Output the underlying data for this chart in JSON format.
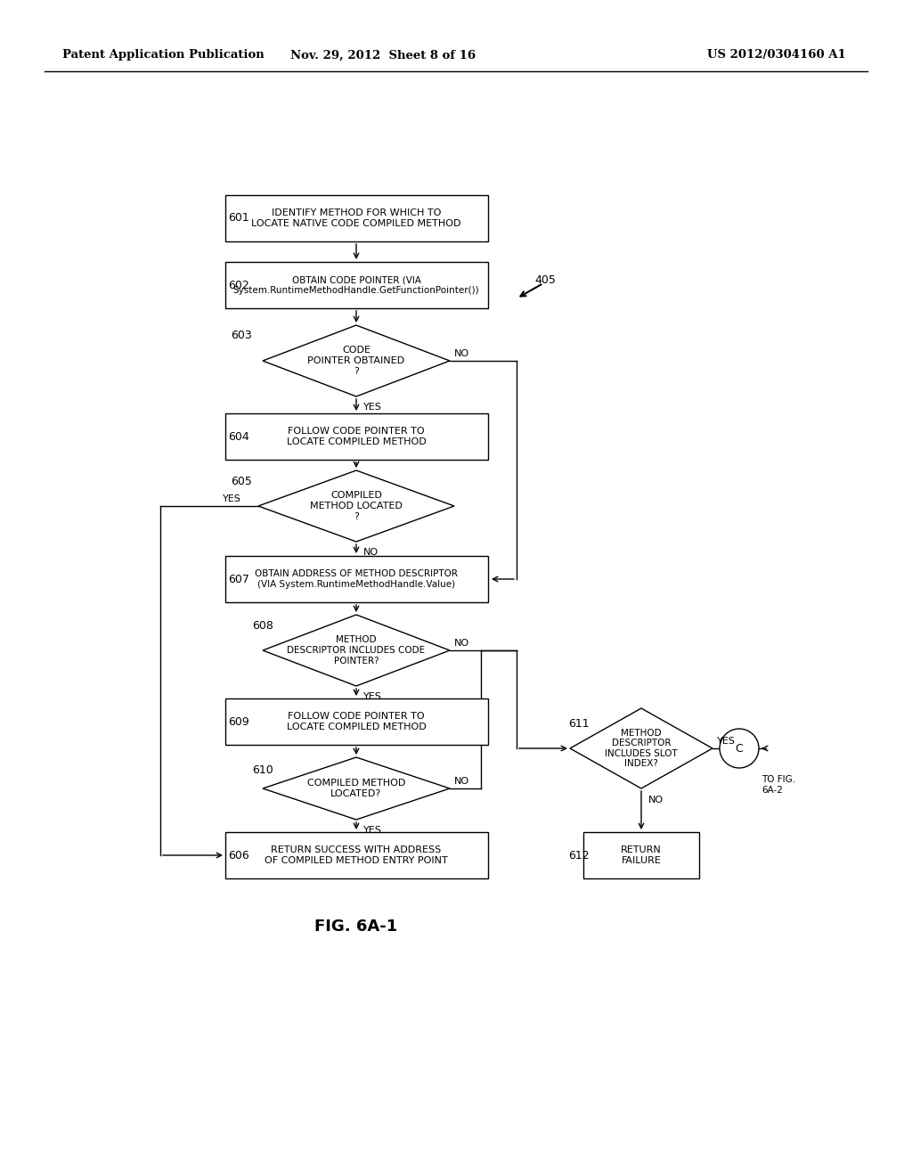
{
  "title_left": "Patent Application Publication",
  "title_mid": "Nov. 29, 2012  Sheet 8 of 16",
  "title_right": "US 2012/0304160 A1",
  "fig_label": "FIG. 6A-1",
  "background": "#ffffff"
}
